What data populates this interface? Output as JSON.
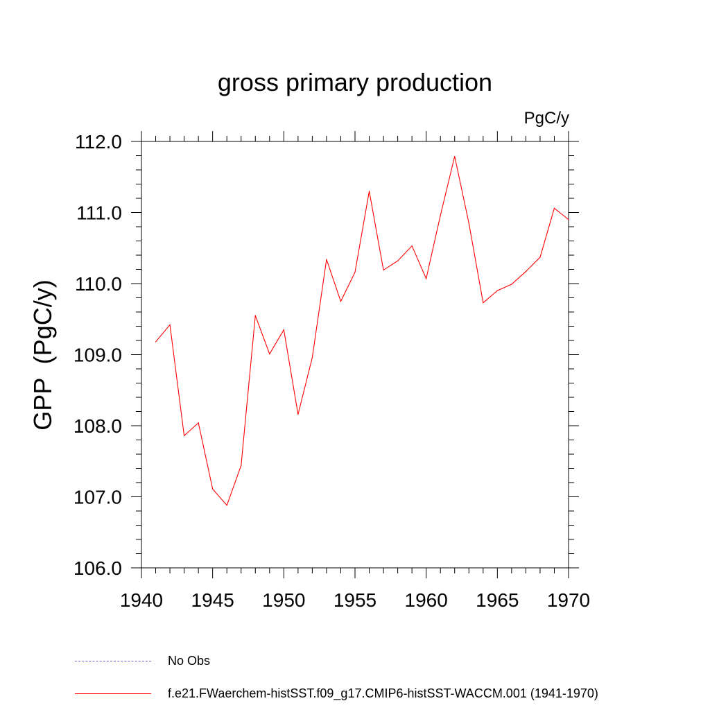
{
  "chart_data": {
    "type": "line",
    "title": "gross primary production",
    "units_label": "PgC/y",
    "ylabel": "GPP  (PgC/y)",
    "xlabel": "",
    "xlim": [
      1940,
      1970
    ],
    "ylim": [
      106.0,
      112.0
    ],
    "x_ticks": [
      1940,
      1945,
      1950,
      1955,
      1960,
      1965,
      1970
    ],
    "y_ticks": [
      "106.0",
      "107.0",
      "108.0",
      "109.0",
      "110.0",
      "111.0",
      "112.0"
    ],
    "grid": false,
    "legend_position": "bottom",
    "series": [
      {
        "name": "f.e21.FWaerchem-histSST.f09_g17.CMIP6-histSST-WACCM.001 (1941-1970)",
        "color": "#ff0000",
        "x": [
          1941,
          1942,
          1943,
          1944,
          1945,
          1946,
          1947,
          1948,
          1949,
          1950,
          1951,
          1952,
          1953,
          1954,
          1955,
          1956,
          1957,
          1958,
          1959,
          1960,
          1961,
          1962,
          1963,
          1964,
          1965,
          1966,
          1967,
          1968,
          1969,
          1970
        ],
        "y": [
          109.18,
          109.42,
          107.86,
          108.04,
          107.11,
          106.88,
          107.44,
          109.55,
          109.01,
          109.35,
          108.16,
          108.96,
          110.34,
          109.75,
          110.16,
          111.3,
          110.19,
          110.32,
          110.53,
          110.07,
          110.96,
          111.79,
          110.85,
          109.73,
          109.9,
          109.99,
          110.17,
          110.37,
          111.06,
          110.9
        ]
      }
    ],
    "legend": [
      {
        "label": "No Obs",
        "color": "#6a5acd",
        "dash": true
      },
      {
        "label": "f.e21.FWaerchem-histSST.f09_g17.CMIP6-histSST-WACCM.001 (1941-1970)",
        "color": "#ff0000",
        "dash": false
      }
    ]
  }
}
